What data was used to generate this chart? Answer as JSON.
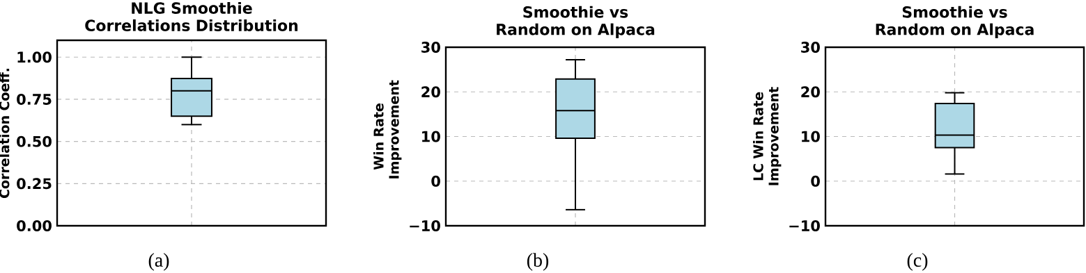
{
  "chart_data": [
    {
      "type": "box",
      "title": "NLG Smoothie Correlations Distribution",
      "ylabel": "Correlation Coeff.",
      "categories": [
        null
      ],
      "series": [
        {
          "color": "#add8e6",
          "boxes": [
            {
              "low": 0.6,
              "q1": 0.65,
              "median": 0.8,
              "q3": 0.873,
              "high": 1.0
            }
          ]
        }
      ],
      "ylim": [
        0,
        1.1
      ],
      "yticks": [
        {
          "value": 0,
          "label": "0.00"
        },
        {
          "value": 0.25,
          "label": "0.25"
        },
        {
          "value": 0.5,
          "label": "0.50"
        },
        {
          "value": 0.75,
          "label": "0.75"
        },
        {
          "value": 1.0,
          "label": "1.00"
        }
      ],
      "grid": true,
      "tick_labels": "y",
      "annotations": [
        "(a)"
      ]
    },
    {
      "type": "box",
      "title": "Smoothie vs Random on Alpaca",
      "ylabel": "Win Rate Improvement",
      "categories": [
        null
      ],
      "series": [
        {
          "color": "#add8e6",
          "boxes": [
            {
              "low": -6.4,
              "q1": 9.6,
              "median": 15.8,
              "q3": 22.9,
              "high": 27.2
            }
          ]
        }
      ],
      "ylim": [
        -10,
        30
      ],
      "yticks": [
        {
          "value": -10,
          "label": "−10"
        },
        0,
        10,
        20,
        30
      ],
      "grid": true,
      "tick_labels": "y",
      "annotations": [
        "(b)"
      ]
    },
    {
      "type": "box",
      "title": "Smoothie vs Random on Alpaca",
      "ylabel": "LC Win Rate Improvement",
      "categories": [
        null
      ],
      "series": [
        {
          "color": "#add8e6",
          "boxes": [
            {
              "low": 1.6,
              "q1": 7.5,
              "median": 10.3,
              "q3": 17.4,
              "high": 19.8
            }
          ]
        }
      ],
      "ylim": [
        -10,
        30
      ],
      "yticks": [
        {
          "value": -10,
          "label": "−10"
        },
        0,
        10,
        20,
        30
      ],
      "grid": true,
      "tick_labels": "y",
      "annotations": [
        "(c)"
      ]
    }
  ]
}
